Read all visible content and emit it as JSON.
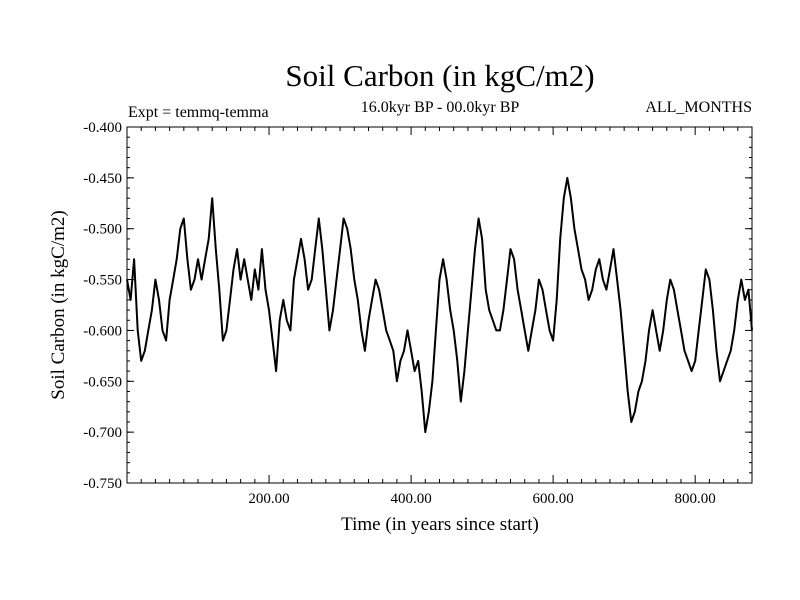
{
  "chart_data": {
    "type": "line",
    "title": "Soil Carbon (in kgC/m2)",
    "subtitle_left": "Expt = temmq-temma",
    "subtitle_center": "16.0kyr BP - 00.0kyr BP",
    "subtitle_right": "ALL_MONTHS",
    "xlabel": "Time (in years since start)",
    "ylabel": "Soil Carbon (in kgC/m2)",
    "xlim": [
      0,
      880
    ],
    "ylim": [
      -0.75,
      -0.4
    ],
    "x_ticks": [
      200,
      400,
      600,
      800
    ],
    "x_tick_labels": [
      "200.00",
      "400.00",
      "600.00",
      "800.00"
    ],
    "y_ticks": [
      -0.4,
      -0.45,
      -0.5,
      -0.55,
      -0.6,
      -0.65,
      -0.7,
      -0.75
    ],
    "y_tick_labels": [
      "-0.400",
      "-0.450",
      "-0.500",
      "-0.550",
      "-0.600",
      "-0.650",
      "-0.700",
      "-0.750"
    ],
    "grid": false,
    "line_color": "#000000",
    "series": [
      {
        "name": "Soil Carbon",
        "x": [
          0,
          5,
          10,
          15,
          20,
          25,
          30,
          35,
          40,
          45,
          50,
          55,
          60,
          65,
          70,
          75,
          80,
          85,
          90,
          95,
          100,
          105,
          110,
          115,
          120,
          125,
          130,
          135,
          140,
          145,
          150,
          155,
          160,
          165,
          170,
          175,
          180,
          185,
          190,
          195,
          200,
          205,
          210,
          215,
          220,
          225,
          230,
          235,
          240,
          245,
          250,
          255,
          260,
          265,
          270,
          275,
          280,
          285,
          290,
          295,
          300,
          305,
          310,
          315,
          320,
          325,
          330,
          335,
          340,
          345,
          350,
          355,
          360,
          365,
          370,
          375,
          380,
          385,
          390,
          395,
          400,
          405,
          410,
          415,
          420,
          425,
          430,
          435,
          440,
          445,
          450,
          455,
          460,
          465,
          470,
          475,
          480,
          485,
          490,
          495,
          500,
          505,
          510,
          515,
          520,
          525,
          530,
          535,
          540,
          545,
          550,
          555,
          560,
          565,
          570,
          575,
          580,
          585,
          590,
          595,
          600,
          605,
          610,
          615,
          620,
          625,
          630,
          635,
          640,
          645,
          650,
          655,
          660,
          665,
          670,
          675,
          680,
          685,
          690,
          695,
          700,
          705,
          710,
          715,
          720,
          725,
          730,
          735,
          740,
          745,
          750,
          755,
          760,
          765,
          770,
          775,
          780,
          785,
          790,
          795,
          800,
          805,
          810,
          815,
          820,
          825,
          830,
          835,
          840,
          845,
          850,
          855,
          860,
          865,
          870,
          875,
          880
        ],
        "values": [
          -0.55,
          -0.57,
          -0.53,
          -0.6,
          -0.63,
          -0.62,
          -0.6,
          -0.58,
          -0.55,
          -0.57,
          -0.6,
          -0.61,
          -0.57,
          -0.55,
          -0.53,
          -0.5,
          -0.49,
          -0.53,
          -0.56,
          -0.55,
          -0.53,
          -0.55,
          -0.53,
          -0.51,
          -0.47,
          -0.52,
          -0.56,
          -0.61,
          -0.6,
          -0.57,
          -0.54,
          -0.52,
          -0.55,
          -0.53,
          -0.55,
          -0.57,
          -0.54,
          -0.56,
          -0.52,
          -0.56,
          -0.58,
          -0.61,
          -0.64,
          -0.59,
          -0.57,
          -0.59,
          -0.6,
          -0.55,
          -0.53,
          -0.51,
          -0.53,
          -0.56,
          -0.55,
          -0.52,
          -0.49,
          -0.52,
          -0.56,
          -0.6,
          -0.58,
          -0.55,
          -0.52,
          -0.49,
          -0.5,
          -0.52,
          -0.55,
          -0.57,
          -0.6,
          -0.62,
          -0.59,
          -0.57,
          -0.55,
          -0.56,
          -0.58,
          -0.6,
          -0.61,
          -0.62,
          -0.65,
          -0.63,
          -0.62,
          -0.6,
          -0.62,
          -0.64,
          -0.63,
          -0.66,
          -0.7,
          -0.68,
          -0.65,
          -0.6,
          -0.55,
          -0.53,
          -0.55,
          -0.58,
          -0.6,
          -0.63,
          -0.67,
          -0.64,
          -0.6,
          -0.56,
          -0.52,
          -0.49,
          -0.51,
          -0.56,
          -0.58,
          -0.59,
          -0.6,
          -0.6,
          -0.58,
          -0.55,
          -0.52,
          -0.53,
          -0.56,
          -0.58,
          -0.6,
          -0.62,
          -0.6,
          -0.58,
          -0.55,
          -0.56,
          -0.58,
          -0.6,
          -0.61,
          -0.57,
          -0.51,
          -0.47,
          -0.45,
          -0.47,
          -0.5,
          -0.52,
          -0.54,
          -0.55,
          -0.57,
          -0.56,
          -0.54,
          -0.53,
          -0.55,
          -0.56,
          -0.54,
          -0.52,
          -0.55,
          -0.58,
          -0.62,
          -0.66,
          -0.69,
          -0.68,
          -0.66,
          -0.65,
          -0.63,
          -0.6,
          -0.58,
          -0.6,
          -0.62,
          -0.6,
          -0.57,
          -0.55,
          -0.56,
          -0.58,
          -0.6,
          -0.62,
          -0.63,
          -0.64,
          -0.63,
          -0.6,
          -0.57,
          -0.54,
          -0.55,
          -0.58,
          -0.62,
          -0.65,
          -0.64,
          -0.63,
          -0.62,
          -0.6,
          -0.57,
          -0.55,
          -0.57,
          -0.56,
          -0.6
        ]
      }
    ]
  }
}
